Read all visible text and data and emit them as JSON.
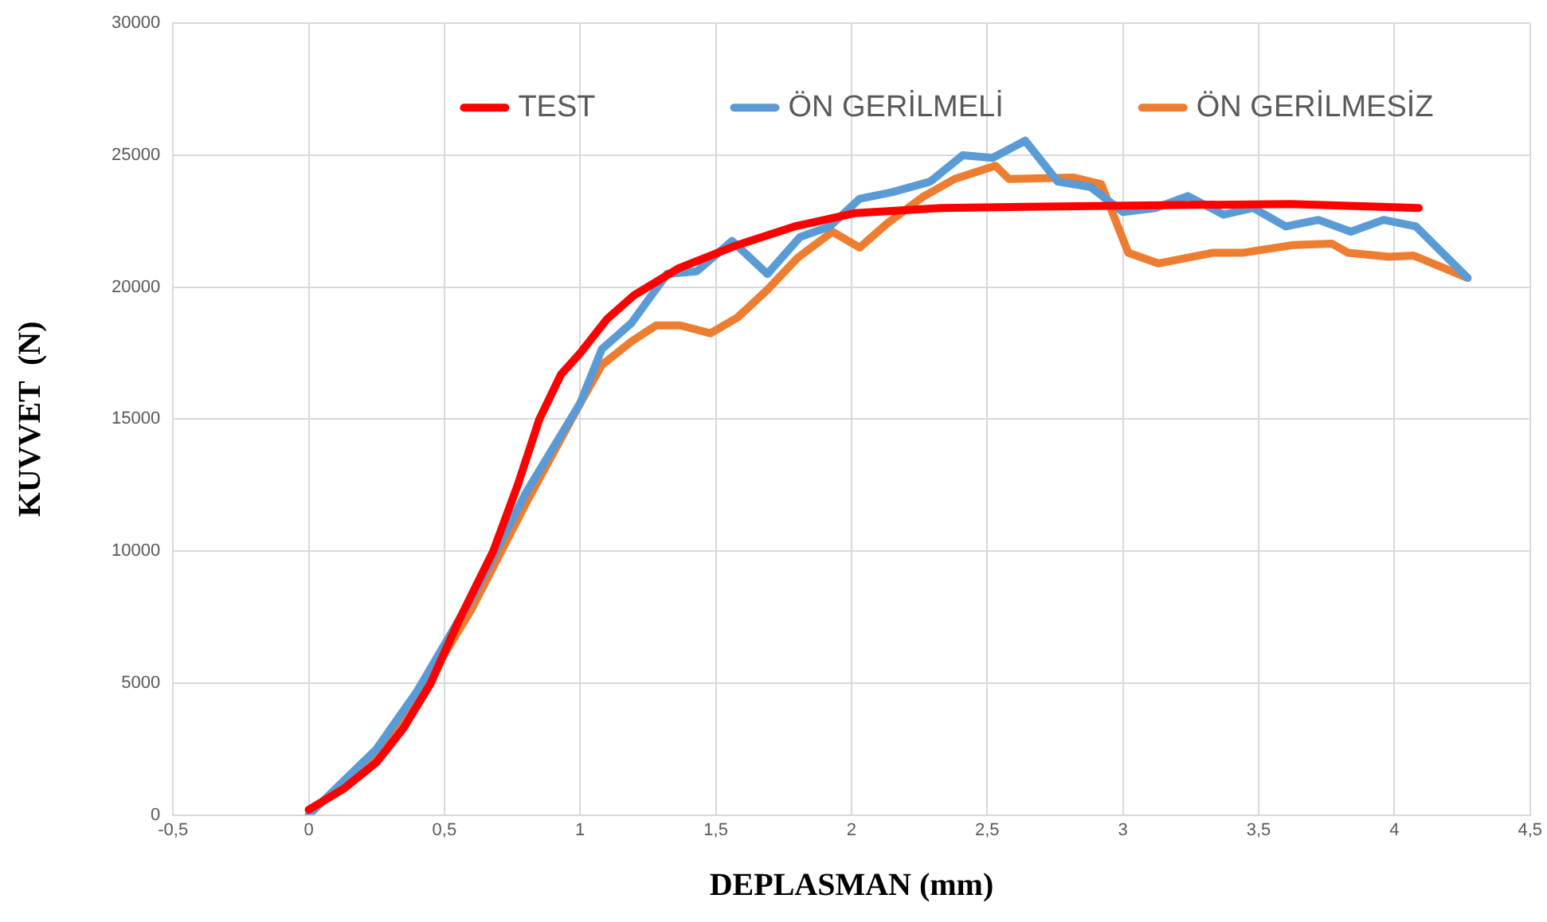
{
  "chart_data": {
    "type": "line",
    "xlabel": "DEPLASMAN (mm)",
    "ylabel": "KUVVET  (N)",
    "xlim": [
      -0.5,
      4.5
    ],
    "xticks": [
      {
        "value": -0.5,
        "label": "-0,5"
      },
      0,
      {
        "value": 0.5,
        "label": "0,5"
      },
      1,
      {
        "value": 1.5,
        "label": "1,5"
      },
      2,
      {
        "value": 2.5,
        "label": "2,5"
      },
      3,
      {
        "value": 3.5,
        "label": "3,5"
      },
      4,
      {
        "value": 4.5,
        "label": "4,5"
      }
    ],
    "ylim": [
      0,
      30000
    ],
    "yticks": [
      0,
      5000,
      10000,
      15000,
      20000,
      25000,
      30000
    ],
    "grid": true,
    "legend": "top",
    "marker": "none",
    "line_style": "solid",
    "series": [
      {
        "name": "TEST",
        "color": "#ff0000",
        "x": [
          0,
          0.13,
          0.25,
          0.35,
          0.45,
          0.55,
          0.68,
          0.77,
          0.85,
          0.93,
          1.0,
          1.1,
          1.2,
          1.36,
          1.58,
          1.79,
          2.01,
          2.33,
          3.08,
          3.62,
          4.09
        ],
        "values": [
          200,
          1000,
          2000,
          3300,
          5000,
          7300,
          10000,
          12500,
          15000,
          16700,
          17500,
          18800,
          19700,
          20700,
          21600,
          22300,
          22800,
          23000,
          23100,
          23150,
          23000
        ]
      },
      {
        "name": "ÖN GERİLMELİ",
        "color": "#5b9bd5",
        "x": [
          0,
          0.1,
          0.25,
          0.4,
          0.6,
          0.8,
          1.0,
          1.08,
          1.19,
          1.32,
          1.43,
          1.56,
          1.69,
          1.81,
          1.92,
          2.03,
          2.15,
          2.29,
          2.41,
          2.52,
          2.64,
          2.76,
          2.88,
          3.0,
          3.12,
          3.24,
          3.37,
          3.48,
          3.6,
          3.72,
          3.84,
          3.96,
          4.08,
          4.27
        ],
        "values": [
          0,
          1000,
          2500,
          4700,
          8200,
          12200,
          15600,
          17650,
          18650,
          20500,
          20600,
          21750,
          20500,
          21900,
          22300,
          23350,
          23600,
          24000,
          25000,
          24900,
          25550,
          24000,
          23800,
          22850,
          23000,
          23450,
          22750,
          23000,
          22300,
          22550,
          22100,
          22550,
          22300,
          20350
        ]
      },
      {
        "name": "ÖN GERİLMESİZ",
        "color": "#ed7d31",
        "x": [
          0.1,
          0.25,
          0.4,
          0.6,
          0.8,
          1.0,
          1.08,
          1.19,
          1.28,
          1.37,
          1.48,
          1.58,
          1.69,
          1.8,
          1.93,
          2.03,
          2.13,
          2.26,
          2.38,
          2.53,
          2.58,
          2.82,
          2.92,
          3.02,
          3.13,
          3.33,
          3.44,
          3.63,
          3.77,
          3.83,
          3.98,
          4.07,
          4.27
        ],
        "values": [
          900,
          2300,
          4400,
          7800,
          11800,
          15600,
          17050,
          17950,
          18550,
          18550,
          18250,
          18850,
          19900,
          21100,
          22100,
          21500,
          22400,
          23400,
          24100,
          24600,
          24100,
          24150,
          23900,
          21300,
          20900,
          21300,
          21300,
          21600,
          21650,
          21300,
          21150,
          21200,
          20350
        ]
      }
    ]
  }
}
